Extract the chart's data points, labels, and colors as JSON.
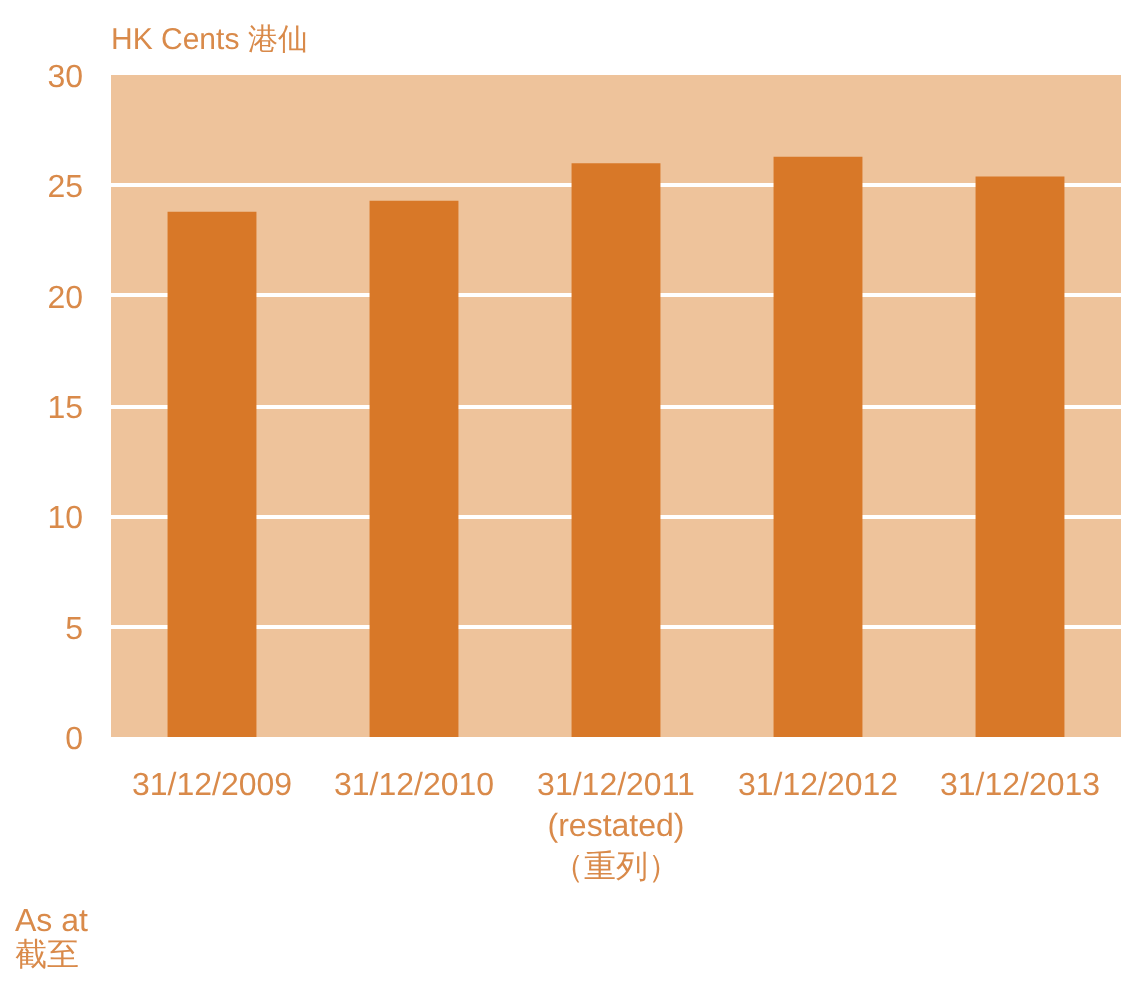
{
  "chart_data": {
    "type": "bar",
    "ylabel": "HK Cents 港仙",
    "categories": [
      "31/12/2009",
      "31/12/2010",
      "31/12/2011\n(restated)\n（重列）",
      "31/12/2012",
      "31/12/2013"
    ],
    "values": [
      23.8,
      24.3,
      26.0,
      26.3,
      25.4
    ],
    "color": "#d87828",
    "ylim": [
      0,
      30
    ],
    "yticks": [
      0,
      5,
      10,
      15,
      20,
      25,
      30
    ],
    "grid": "y",
    "annotations": [
      "As at\n截至"
    ]
  }
}
